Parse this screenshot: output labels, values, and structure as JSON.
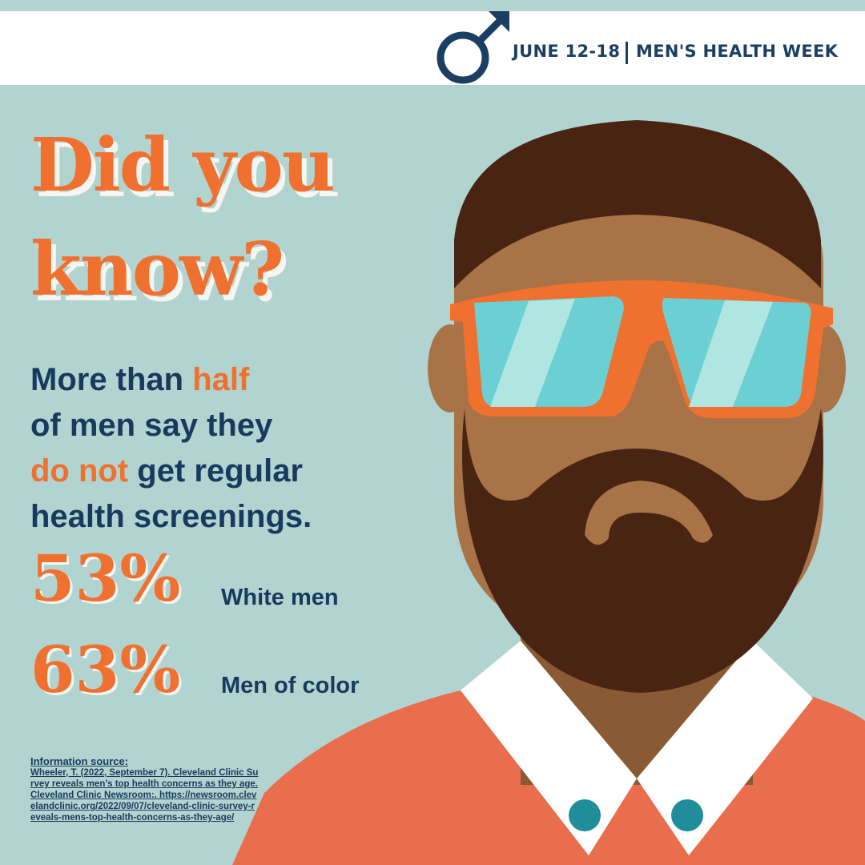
{
  "header": {
    "dates": "JUNE 12-18",
    "event": "MEN'S HEALTH WEEK"
  },
  "headline": [
    "Did you",
    "know?"
  ],
  "body": [
    "More than ",
    "half",
    "of men say they",
    "do not",
    " get regular",
    "health screenings."
  ],
  "stats": [
    {
      "value": "53%",
      "group": "White men"
    },
    {
      "value": "63%",
      "group": "Men of color"
    }
  ],
  "source": {
    "title": "Information source:",
    "citation": "Wheeler, T. (2022, September 7). Cleveland Clinic Survey reveals men’s top health concerns as they age. Cleveland Clinic Newsroom:. https://newsroom.clevelandclinic.org/2022/09/07/cleveland-clinic-survey-reveals-mens-top-health-concerns-as-they-age/"
  }
}
